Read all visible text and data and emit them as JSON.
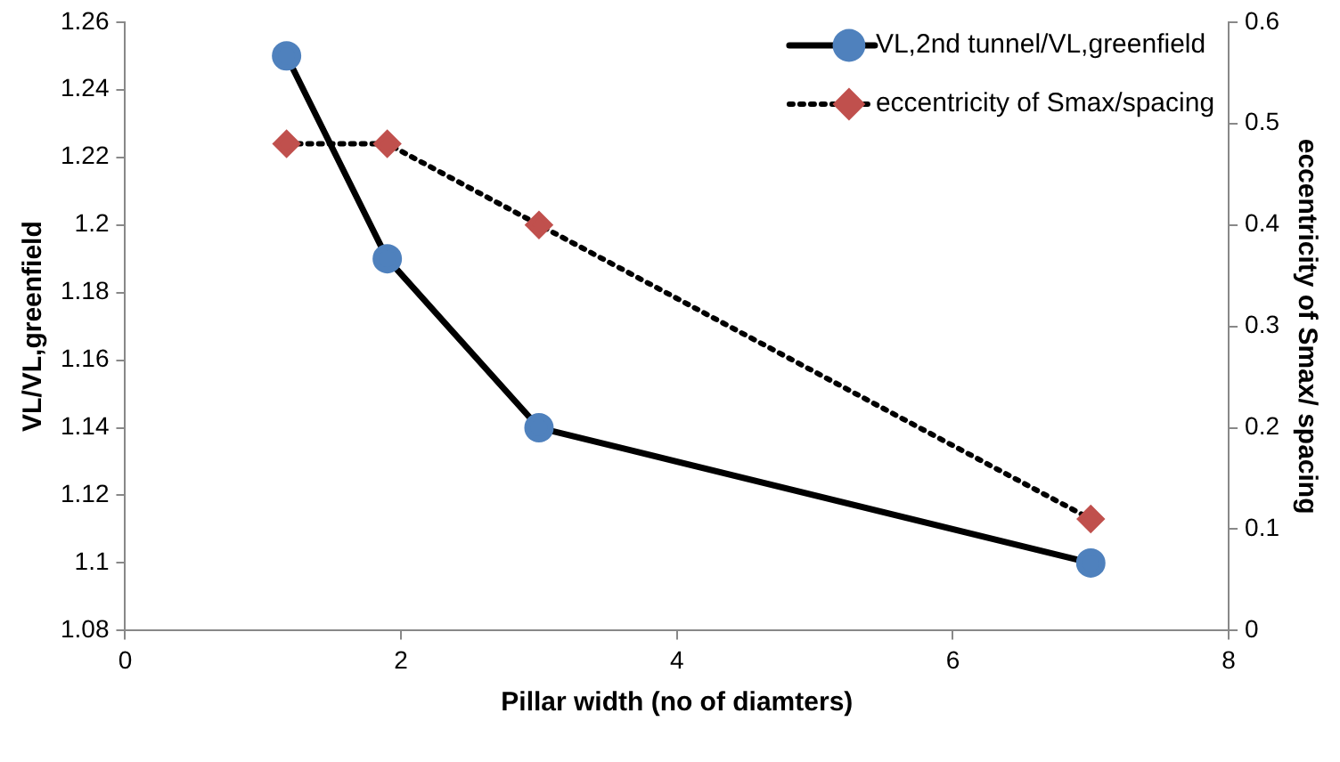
{
  "chart_data": {
    "type": "line",
    "xlabel": "Pillar width (no of diamters)",
    "ylabel": "VL/VL,greenfield",
    "y2label": "eccentricity of Smax/ spacing",
    "series": [
      {
        "name": "VL,2nd tunnel/VL,greenfield",
        "color": "#4f81bd",
        "x": [
          1.17,
          1.9,
          3,
          7
        ],
        "values": [
          1.25,
          1.19,
          1.14,
          1.1
        ],
        "marker": "circle",
        "line_style": "solid"
      },
      {
        "name": "eccentricity of Smax/spacing",
        "color": "#c0504d",
        "axis": "y2",
        "x": [
          1.17,
          1.9,
          3,
          7
        ],
        "values": [
          0.48,
          0.48,
          0.4,
          0.11
        ],
        "marker": "diamond",
        "line_style": "dotted"
      }
    ],
    "xlim": [
      0,
      8
    ],
    "xticks": [
      0,
      2,
      4,
      6,
      8
    ],
    "ylim": [
      1.08,
      1.26
    ],
    "yticks": [
      1.08,
      1.1,
      1.12,
      1.14,
      1.16,
      1.18,
      1.2,
      1.22,
      1.24,
      1.26
    ],
    "y2lim": [
      0,
      0.6
    ],
    "y2ticks": [
      0,
      0.1,
      0.2,
      0.3,
      0.4,
      0.5,
      0.6
    ],
    "grid": false,
    "legend": "top right"
  }
}
